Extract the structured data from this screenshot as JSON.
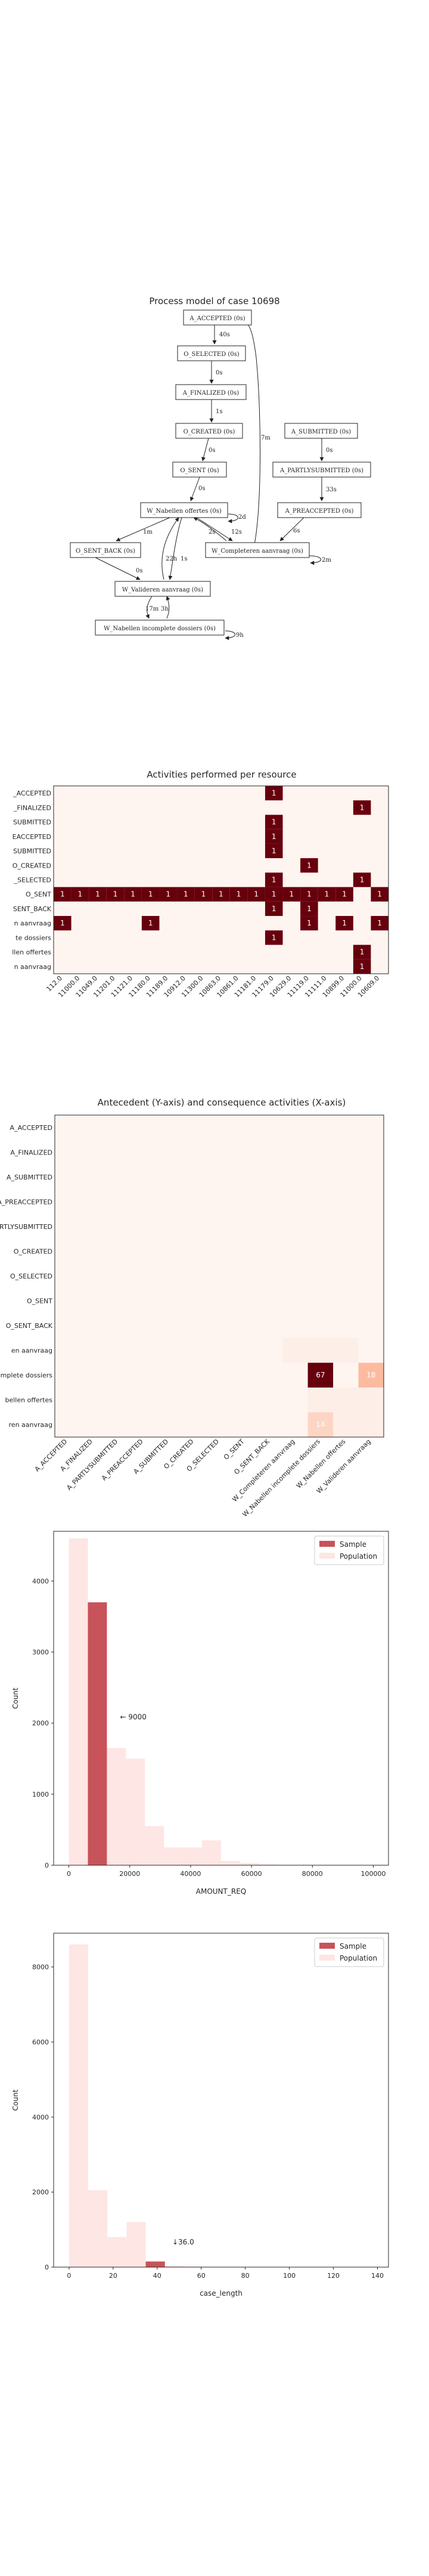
{
  "process_model": {
    "title": "Process model of case 10698",
    "nodes": [
      {
        "id": "a_accepted",
        "label": "A_ACCEPTED (0s)"
      },
      {
        "id": "o_selected",
        "label": "O_SELECTED (0s)"
      },
      {
        "id": "a_finalized",
        "label": "A_FINALIZED (0s)"
      },
      {
        "id": "o_created",
        "label": "O_CREATED (0s)"
      },
      {
        "id": "o_sent",
        "label": "O_SENT (0s)"
      },
      {
        "id": "w_nabellen",
        "label": "W_Nabellen offertes (0s)"
      },
      {
        "id": "o_sent_back",
        "label": "O_SENT_BACK (0s)"
      },
      {
        "id": "w_valideren",
        "label": "W_Valideren aanvraag (0s)"
      },
      {
        "id": "w_incompleet",
        "label": "W_Nabellen incomplete dossiers (0s)"
      },
      {
        "id": "a_submitted",
        "label": "A_SUBMITTED (0s)"
      },
      {
        "id": "a_partly",
        "label": "A_PARTLYSUBMITTED (0s)"
      },
      {
        "id": "a_preaccepted",
        "label": "A_PREACCEPTED (0s)"
      },
      {
        "id": "w_completeren",
        "label": "W_Completeren aanvraag (0s)"
      }
    ],
    "edge_labels": {
      "e1": "40s",
      "e2": "0s",
      "e3": "1s",
      "e4": "0s",
      "e5": "0s",
      "e6": "7m",
      "e7": "0s",
      "e8": "33s",
      "e9": "6s",
      "e10": "1m",
      "e11": "2s",
      "e12": "12s",
      "e13": "2m",
      "e14": "22h",
      "e15": "1s",
      "e16": "0s",
      "e17": "17m",
      "e18": "3h",
      "e19": "9h",
      "e20": "2d"
    }
  },
  "chart_data": [
    {
      "type": "heatmap",
      "title": "Activities performed per resource",
      "rows": [
        "A_ACCEPTED",
        "A_FINALIZED",
        "A_SUBMITTED",
        "A_PREACCEPTED",
        "A_PARTLYSUBMITTED",
        "O_CREATED",
        "O_SELECTED",
        "O_SENT",
        "O_SENT_BACK",
        "W_Completeren aanvraag",
        "W_Nabellen incomplete dossiers",
        "W_Nabellen offertes",
        "W_Valideren aanvraag"
      ],
      "row_labels_visible": [
        "_ACCEPTED",
        "_FINALIZED",
        "SUBMITTED",
        "EACCEPTED",
        "SUBMITTED",
        "O_CREATED",
        "_SELECTED",
        "O_SENT",
        "SENT_BACK",
        "n aanvraag",
        "te dossiers",
        "llen offertes",
        "n aanvraag"
      ],
      "columns": [
        "112.0",
        "11000.0",
        "11049.0",
        "11201.0",
        "11121.0",
        "11180.0",
        "11189.0",
        "10912.0",
        "11300.0",
        "10863.0",
        "10861.0",
        "11181.0",
        "11179.0",
        "10629.0",
        "11119.0",
        "11111.0",
        "10899.0",
        "11000.0",
        "10609.0"
      ],
      "cells": [
        {
          "row": 0,
          "col": 12,
          "value": 1
        },
        {
          "row": 1,
          "col": 17,
          "value": 1
        },
        {
          "row": 2,
          "col": 12,
          "value": 1
        },
        {
          "row": 3,
          "col": 12,
          "value": 1
        },
        {
          "row": 4,
          "col": 12,
          "value": 1
        },
        {
          "row": 5,
          "col": 14,
          "value": 1
        },
        {
          "row": 6,
          "col": 12,
          "value": 1
        },
        {
          "row": 6,
          "col": 17,
          "value": 1
        },
        {
          "row": 7,
          "col": 0,
          "value": 1
        },
        {
          "row": 7,
          "col": 1,
          "value": 1
        },
        {
          "row": 7,
          "col": 2,
          "value": 1
        },
        {
          "row": 7,
          "col": 3,
          "value": 1
        },
        {
          "row": 7,
          "col": 4,
          "value": 1
        },
        {
          "row": 7,
          "col": 5,
          "value": 1
        },
        {
          "row": 7,
          "col": 6,
          "value": 1
        },
        {
          "row": 7,
          "col": 7,
          "value": 1
        },
        {
          "row": 7,
          "col": 8,
          "value": 1
        },
        {
          "row": 7,
          "col": 9,
          "value": 1
        },
        {
          "row": 7,
          "col": 10,
          "value": 1
        },
        {
          "row": 7,
          "col": 11,
          "value": 1
        },
        {
          "row": 7,
          "col": 12,
          "value": 1
        },
        {
          "row": 7,
          "col": 13,
          "value": 1
        },
        {
          "row": 7,
          "col": 14,
          "value": 1
        },
        {
          "row": 7,
          "col": 15,
          "value": 1
        },
        {
          "row": 7,
          "col": 16,
          "value": 1
        },
        {
          "row": 7,
          "col": 18,
          "value": 1
        },
        {
          "row": 8,
          "col": 12,
          "value": 1
        },
        {
          "row": 8,
          "col": 14,
          "value": 1
        },
        {
          "row": 9,
          "col": 0,
          "value": 1
        },
        {
          "row": 9,
          "col": 5,
          "value": 1
        },
        {
          "row": 9,
          "col": 14,
          "value": 1
        },
        {
          "row": 9,
          "col": 16,
          "value": 1
        },
        {
          "row": 9,
          "col": 18,
          "value": 1
        },
        {
          "row": 10,
          "col": 12,
          "value": 1
        },
        {
          "row": 11,
          "col": 17,
          "value": 1
        },
        {
          "row": 12,
          "col": 17,
          "value": 1
        }
      ]
    },
    {
      "type": "heatmap",
      "title": "Antecedent (Y-axis) and consequence activities (X-axis)",
      "rows": [
        "A_ACCEPTED",
        "A_FINALIZED",
        "A_SUBMITTED",
        "A_PREACCEPTED",
        "A_PARTLYSUBMITTED",
        "O_CREATED",
        "O_SELECTED",
        "O_SENT",
        "O_SENT_BACK",
        "W_Completeren aanvraag",
        "W_Nabellen incomplete dossiers",
        "W_Nabellen offertes",
        "W_Valideren aanvraag"
      ],
      "row_labels_visible": [
        "A_ACCEPTED",
        "A_FINALIZED",
        "A_SUBMITTED",
        "A_PREACCEPTED",
        "A_PARTLYSUBMITTED",
        "O_CREATED",
        "O_SELECTED",
        "O_SENT",
        "O_SENT_BACK",
        "en aanvraag",
        "complete dossiers",
        "bellen offertes",
        "ren aanvraag"
      ],
      "columns": [
        "A_ACCEPTED",
        "A_FINALIZED",
        "A_PARTLYSUBMITTED",
        "A_PREACCEPTED",
        "A_SUBMITTED",
        "O_CREATED",
        "O_SELECTED",
        "O_SENT",
        "O_SENT_BACK",
        "W_Completeren aanvraag",
        "W_Nabellen incomplete dossiers",
        "W_Nabellen offertes",
        "W_Valideren aanvraag"
      ],
      "cells": [
        {
          "row": 10,
          "col": 10,
          "value": 67
        },
        {
          "row": 10,
          "col": 12,
          "value": 18
        },
        {
          "row": 12,
          "col": 10,
          "value": 14
        }
      ]
    },
    {
      "type": "bar",
      "title": "",
      "xlabel": "AMOUNT_REQ",
      "ylabel": "Count",
      "xlim": [
        -5000,
        105000
      ],
      "ylim": [
        0,
        4700
      ],
      "xticks": [
        0,
        20000,
        40000,
        60000,
        80000,
        100000
      ],
      "yticks": [
        0,
        1000,
        2000,
        3000,
        4000
      ],
      "bin_width": 6250,
      "series": [
        {
          "name": "Sample",
          "color": "#c8535a",
          "bins": [
            {
              "x0": 6250,
              "count": 3700
            }
          ]
        },
        {
          "name": "Population",
          "color": "#fde6e3",
          "bins": [
            {
              "x0": 0,
              "count": 4600
            },
            {
              "x0": 6250,
              "count": 3700
            },
            {
              "x0": 12500,
              "count": 1650
            },
            {
              "x0": 18750,
              "count": 1500
            },
            {
              "x0": 25000,
              "count": 550
            },
            {
              "x0": 31250,
              "count": 250
            },
            {
              "x0": 37500,
              "count": 250
            },
            {
              "x0": 43750,
              "count": 350
            },
            {
              "x0": 50000,
              "count": 60
            },
            {
              "x0": 56250,
              "count": 30
            },
            {
              "x0": 62500,
              "count": 10
            },
            {
              "x0": 68750,
              "count": 5
            },
            {
              "x0": 75000,
              "count": 5
            }
          ]
        }
      ],
      "annotation": {
        "text": "← 9000",
        "x": 9000,
        "y": 2050
      },
      "legend": "top-right"
    },
    {
      "type": "bar",
      "title": "",
      "xlabel": "case_length",
      "ylabel": "Count",
      "xlim": [
        -7,
        145
      ],
      "ylim": [
        0,
        8900
      ],
      "xticks": [
        0,
        20,
        40,
        60,
        80,
        100,
        120,
        140
      ],
      "yticks": [
        0,
        2000,
        4000,
        6000,
        8000
      ],
      "bin_width": 8.7,
      "series": [
        {
          "name": "Sample",
          "color": "#c8535a",
          "bins": [
            {
              "x0": 34.8,
              "count": 150
            }
          ]
        },
        {
          "name": "Population",
          "color": "#fde6e3",
          "bins": [
            {
              "x0": 0,
              "count": 8600
            },
            {
              "x0": 8.7,
              "count": 2050
            },
            {
              "x0": 17.4,
              "count": 800
            },
            {
              "x0": 26.1,
              "count": 1200
            },
            {
              "x0": 34.8,
              "count": 150
            },
            {
              "x0": 43.5,
              "count": 40
            },
            {
              "x0": 52.2,
              "count": 20
            },
            {
              "x0": 60.9,
              "count": 10
            }
          ]
        }
      ],
      "annotation": {
        "text": "↓36.0",
        "x": 36,
        "y": 600
      },
      "legend": "top-right"
    }
  ]
}
